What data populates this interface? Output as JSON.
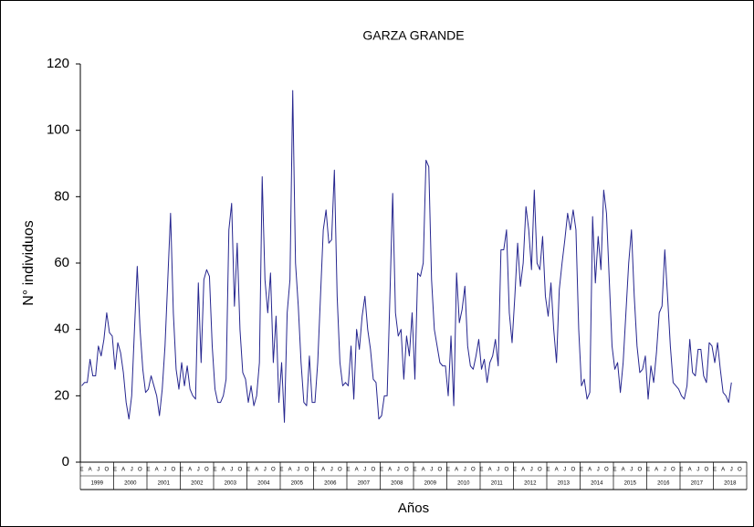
{
  "chart_data": {
    "type": "line",
    "title": "GARZA GRANDE",
    "xlabel": "Años",
    "ylabel": "N° individuos",
    "color": "#26268f",
    "ylim": [
      0,
      120
    ],
    "yticks": [
      0,
      20,
      40,
      60,
      80,
      100,
      120
    ],
    "years": [
      "1999",
      "2000",
      "2001",
      "2002",
      "2003",
      "2004",
      "2005",
      "2006",
      "2007",
      "2008",
      "2009",
      "2010",
      "2011",
      "2012",
      "2013",
      "2014",
      "2015",
      "2016",
      "2017",
      "2018"
    ],
    "categories": [
      "E",
      null,
      null,
      "A",
      null,
      null,
      "J",
      null,
      null,
      "O",
      null,
      null,
      "E",
      null,
      null,
      "A",
      null,
      null,
      "J",
      null,
      null,
      "O",
      null,
      null,
      "E",
      null,
      null,
      "A",
      null,
      null,
      "J",
      null,
      null,
      "O",
      null,
      null,
      "E",
      null,
      null,
      "A",
      null,
      null,
      "J",
      null,
      null,
      "O",
      null,
      null,
      "E",
      null,
      null,
      "A",
      null,
      null,
      "J",
      null,
      null,
      "O",
      null,
      null,
      "E",
      null,
      null,
      "A",
      null,
      null,
      "J",
      null,
      null,
      "O",
      null,
      null,
      "E",
      null,
      null,
      "A",
      null,
      null,
      "J",
      null,
      null,
      "O",
      null,
      null,
      "E",
      null,
      null,
      "A",
      null,
      null,
      "J",
      null,
      null,
      "O",
      null,
      null,
      "E",
      null,
      null,
      "A",
      null,
      null,
      "J",
      null,
      null,
      "O",
      null,
      null,
      "E",
      null,
      null,
      "A",
      null,
      null,
      "J",
      null,
      null,
      "O",
      null,
      null,
      "E",
      null,
      null,
      "A",
      null,
      null,
      "J",
      null,
      null,
      "O",
      null,
      null,
      "E",
      null,
      null,
      "A",
      null,
      null,
      "J",
      null,
      null,
      "O",
      null,
      null,
      "E",
      null,
      null,
      "A",
      null,
      null,
      "J",
      null,
      null,
      "O",
      null,
      null,
      "E",
      null,
      null,
      "A",
      null,
      null,
      "J",
      null,
      null,
      "O",
      null,
      null,
      "E",
      null,
      null,
      "A",
      null,
      null,
      "J",
      null,
      null,
      "O",
      null,
      null,
      "E",
      null,
      null,
      "A",
      null,
      null,
      "J",
      null,
      null,
      "O",
      null,
      null,
      "E",
      null,
      null,
      "A",
      null,
      null,
      "J",
      null,
      null,
      "O",
      null,
      null,
      "E",
      null,
      null,
      "A",
      null,
      null,
      "J",
      null,
      null,
      "O",
      null,
      null,
      "E",
      null,
      null,
      "A",
      null,
      null,
      "J",
      null,
      null,
      "O",
      null,
      null,
      "E",
      null,
      null,
      "A",
      null,
      null,
      "J",
      null,
      null,
      "O",
      null,
      null
    ],
    "values": [
      23,
      24,
      24,
      31,
      26,
      26,
      35,
      32,
      37,
      45,
      39,
      38,
      28,
      36,
      33,
      27,
      18,
      13,
      20,
      40,
      59,
      40,
      28,
      21,
      22,
      26,
      23,
      20,
      14,
      22,
      35,
      55,
      75,
      45,
      28,
      22,
      30,
      23,
      29,
      22,
      20,
      19,
      54,
      30,
      55,
      58,
      56,
      35,
      22,
      18,
      18,
      20,
      25,
      70,
      78,
      47,
      66,
      40,
      27,
      25,
      18,
      23,
      17,
      20,
      30,
      86,
      55,
      45,
      57,
      30,
      44,
      18,
      30,
      12,
      45,
      55,
      112,
      60,
      47,
      30,
      18,
      17,
      32,
      18,
      18,
      30,
      50,
      70,
      76,
      66,
      67,
      88,
      50,
      30,
      23,
      24,
      23,
      35,
      19,
      40,
      34,
      44,
      50,
      40,
      34,
      25,
      24,
      13,
      14,
      20,
      20,
      50,
      81,
      45,
      38,
      40,
      25,
      38,
      32,
      45,
      25,
      57,
      56,
      60,
      91,
      89,
      55,
      40,
      35,
      30,
      29,
      29,
      20,
      38,
      17,
      57,
      42,
      46,
      53,
      35,
      29,
      28,
      32,
      37,
      28,
      31,
      24,
      30,
      32,
      37,
      29,
      64,
      64,
      70,
      45,
      36,
      50,
      66,
      53,
      60,
      77,
      70,
      58,
      82,
      60,
      58,
      68,
      50,
      44,
      54,
      40,
      30,
      52,
      60,
      67,
      75,
      70,
      76,
      70,
      40,
      23,
      25,
      19,
      21,
      74,
      54,
      68,
      58,
      82,
      75,
      55,
      35,
      28,
      30,
      21,
      30,
      45,
      60,
      70,
      50,
      35,
      27,
      28,
      32,
      19,
      29,
      24,
      33,
      45,
      47,
      64,
      50,
      35,
      24,
      23,
      22,
      20,
      19,
      23,
      37,
      27,
      26,
      34,
      34,
      26,
      24,
      36,
      35,
      30,
      36,
      28,
      21,
      20,
      18,
      24,
      null,
      null,
      null,
      null,
      null
    ]
  }
}
